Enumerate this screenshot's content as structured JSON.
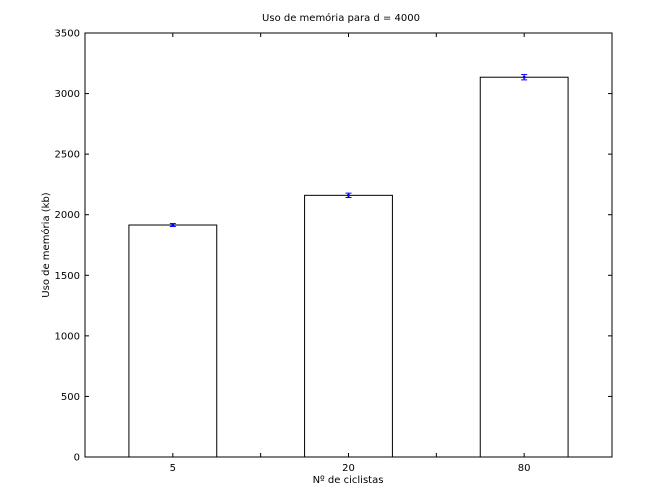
{
  "chart_data": {
    "type": "bar",
    "title": "Uso de memória para d = 4000",
    "xlabel": "Nº de ciclistas",
    "ylabel": "Uso de memória (kb)",
    "categories": [
      "5",
      "20",
      "80"
    ],
    "values": [
      1915,
      2160,
      3135
    ],
    "errors": [
      12,
      18,
      22
    ],
    "ylim": [
      0,
      3500
    ],
    "yticks": [
      0,
      500,
      1000,
      1500,
      2000,
      2500,
      3000,
      3500
    ],
    "grid": false,
    "bar_color": "#ffffff",
    "bar_edge_color": "#000000",
    "error_color": "#0000ff"
  }
}
